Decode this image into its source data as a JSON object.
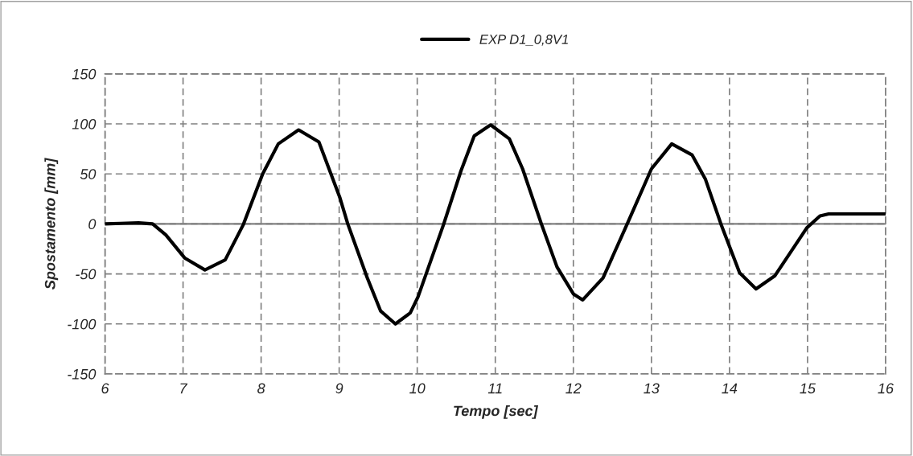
{
  "chart_data": {
    "type": "line",
    "xlabel": "Tempo [sec]",
    "ylabel": "Spostamento [mm]",
    "xlim": [
      6,
      16
    ],
    "xticks": [
      6,
      7,
      8,
      9,
      10,
      11,
      12,
      13,
      14,
      15,
      16
    ],
    "ylim": [
      -150,
      150
    ],
    "yticks": [
      -150,
      -100,
      -50,
      0,
      50,
      100,
      150
    ],
    "grid": true,
    "legend": "top",
    "marker": "none",
    "line_style": "solid",
    "ref_lines": [
      {
        "axis": "y",
        "value": 0,
        "color": "#808080"
      }
    ],
    "series": [
      {
        "name": "EXP D1_0,8V1",
        "color": "#000000",
        "x": [
          6.0,
          6.2,
          6.43,
          6.61,
          6.78,
          7.02,
          7.28,
          7.54,
          7.77,
          8.02,
          8.22,
          8.48,
          8.74,
          9.01,
          9.11,
          9.36,
          9.53,
          9.72,
          9.91,
          10.01,
          10.34,
          10.56,
          10.73,
          10.94,
          11.18,
          11.35,
          11.59,
          11.79,
          12.0,
          12.12,
          12.38,
          12.69,
          13.0,
          13.26,
          13.52,
          13.69,
          13.89,
          14.13,
          14.34,
          14.58,
          14.99,
          15.16,
          15.27,
          15.65,
          16.0
        ],
        "values": [
          0,
          0.5,
          1,
          0,
          -11,
          -34,
          -46,
          -36,
          -1,
          50,
          80,
          94,
          82,
          26,
          0,
          -54,
          -87,
          -100,
          -89,
          -73,
          0,
          53,
          88,
          99,
          85,
          55,
          0,
          -43,
          -70,
          -76,
          -54,
          0,
          55,
          80,
          69,
          45,
          0,
          -49,
          -65,
          -52,
          -4,
          8,
          10,
          10,
          10
        ]
      }
    ]
  }
}
